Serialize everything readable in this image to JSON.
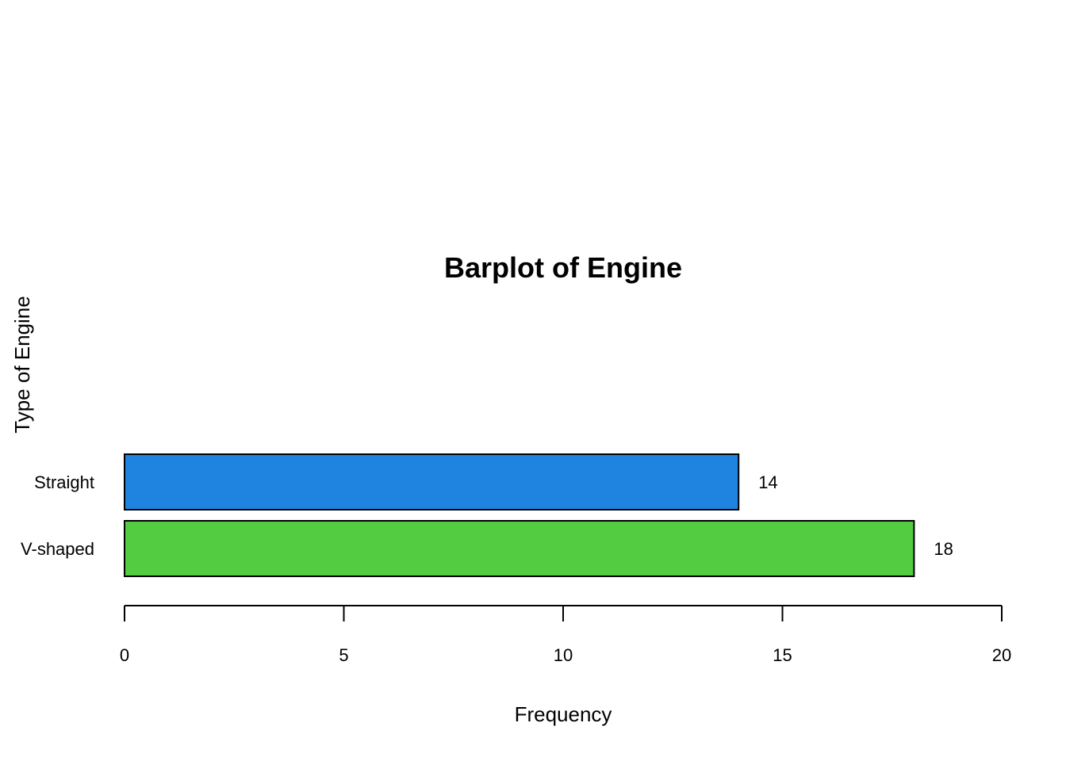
{
  "chart_data": {
    "type": "bar",
    "orientation": "horizontal",
    "title": "Barplot of Engine",
    "xlabel": "Frequency",
    "ylabel": "Type of Engine",
    "categories": [
      "Straight",
      "V-shaped"
    ],
    "values": [
      14,
      18
    ],
    "colors": [
      "#1f83e0",
      "#54cc41"
    ],
    "xlim": [
      0,
      20
    ],
    "xticks": [
      0,
      5,
      10,
      15,
      20
    ],
    "data_labels": [
      "14",
      "18"
    ],
    "grid": false,
    "legend": "none"
  }
}
